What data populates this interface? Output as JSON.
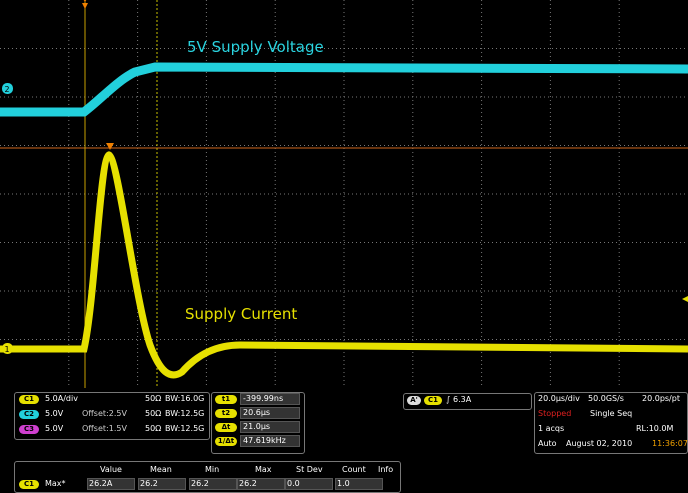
{
  "display": {
    "trace_labels": [
      "5V Supply Voltage",
      "Supply Current"
    ],
    "channel_markers": [
      "2",
      "1"
    ]
  },
  "channels": [
    {
      "id": "C1",
      "scale": "5.0A/div",
      "impedance": "50Ω",
      "bandwidth": "BW:16.0G"
    },
    {
      "id": "C2",
      "scale": "5.0V",
      "offset": "Offset:2.5V",
      "impedance": "50Ω",
      "bandwidth": "BW:12.5G"
    },
    {
      "id": "C3",
      "scale": "5.0V",
      "offset": "Offset:1.5V",
      "impedance": "50Ω",
      "bandwidth": "BW:12.5G"
    }
  ],
  "cursors": [
    {
      "label": "t1",
      "value": "-399.99ns"
    },
    {
      "label": "t2",
      "value": "20.6µs"
    },
    {
      "label": "Δt",
      "value": "21.0µs"
    },
    {
      "label": "1/Δt",
      "value": "47.619kHz"
    }
  ],
  "trigger": {
    "mode": "A'",
    "source": "C1",
    "level": "6.3A"
  },
  "timebase": {
    "scale": "20.0µs/div",
    "sample_rate": "50.0GS/s",
    "resolution": "20.0ps/pt",
    "state": "Stopped",
    "run_mode": "Single Seq",
    "acquisitions": "1 acqs",
    "record_length": "RL:10.0M",
    "trigger_mode": "Auto",
    "date": "August 02, 2010",
    "time": "11:36:07"
  },
  "measurements": {
    "columns": [
      "Value",
      "Mean",
      "Min",
      "Max",
      "St Dev",
      "Count",
      "Info"
    ],
    "rows": [
      {
        "source": "C1",
        "name": "Max*",
        "cells": [
          "26.2A",
          "26.2",
          "26.2",
          "26.2",
          "0.0",
          "1.0"
        ]
      }
    ]
  }
}
